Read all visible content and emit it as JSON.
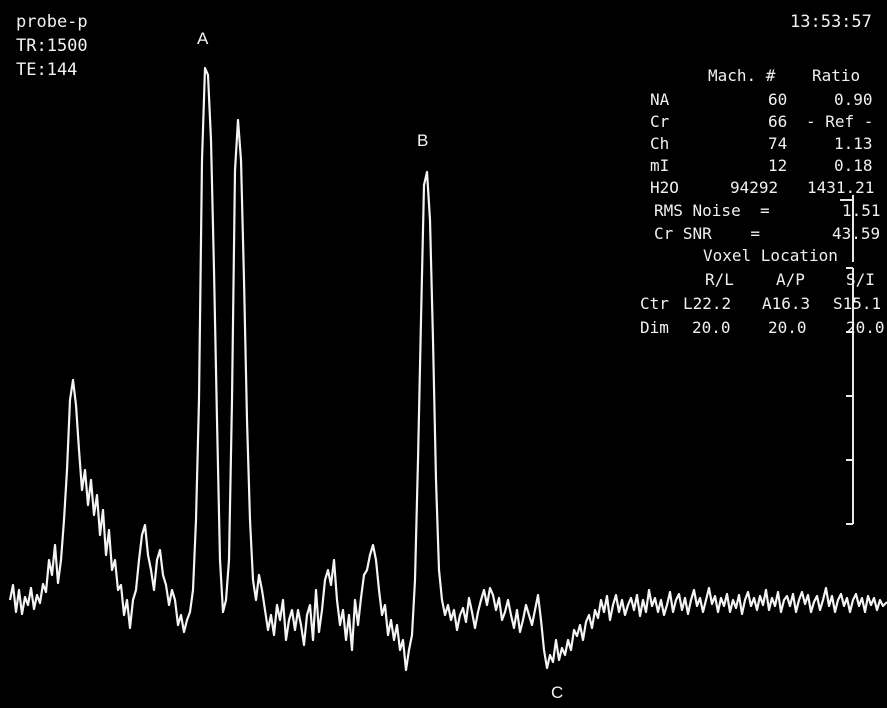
{
  "header": {
    "sequence": "probe-p",
    "tr": "TR:1500",
    "te": "TE:144",
    "time": "13:53:57"
  },
  "peak_labels": {
    "a": "A",
    "b": "B",
    "c": "C"
  },
  "metabolite_table": {
    "col_mach": "Mach. #",
    "col_ratio": "Ratio",
    "rows": [
      {
        "name": "NA",
        "mach": "60",
        "ratio": "0.90"
      },
      {
        "name": "Cr",
        "mach": "66",
        "ratio": "- Ref -"
      },
      {
        "name": "Ch",
        "mach": "74",
        "ratio": "1.13"
      },
      {
        "name": "mI",
        "mach": "12",
        "ratio": "0.18"
      },
      {
        "name": "H2O",
        "mach": "94292",
        "ratio": "1431.21"
      }
    ],
    "rms_noise_label": "RMS Noise  =",
    "rms_noise_value": "1.51",
    "cr_snr_label": "Cr SNR    =",
    "cr_snr_value": "43.59"
  },
  "voxel": {
    "title": "Voxel Location",
    "col_rl": "R/L",
    "col_ap": "A/P",
    "col_si": "S/I",
    "ctr_label": "Ctr",
    "ctr_rl": "L22.2",
    "ctr_ap": "A16.3",
    "ctr_si": "S15.1",
    "dim_label": "Dim",
    "dim_rl": "20.0",
    "dim_ap": "20.0",
    "dim_si": "20.0"
  },
  "colors": {
    "background": "#000000",
    "trace": "#f4f4f4",
    "text": "#f2f2f2"
  }
}
